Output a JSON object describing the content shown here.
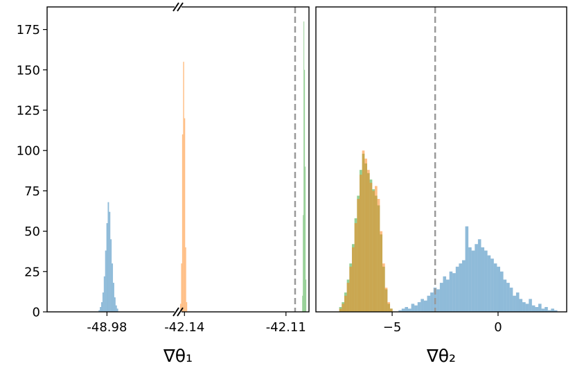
{
  "chart_data": [
    {
      "type": "histogram",
      "xlabel": "∇θ₁",
      "ylim": [
        0,
        189
      ],
      "yticks": [
        0,
        25,
        50,
        75,
        100,
        125,
        150,
        175
      ],
      "segments": [
        {
          "xlim": [
            -49.3,
            -48.6
          ],
          "xticks": [
            -48.98
          ]
        },
        {
          "xlim": [
            -42.1419,
            -42.1032
          ],
          "xticks": [
            -42.14,
            -42.11
          ]
        }
      ],
      "vline": -42.1073,
      "series": [
        {
          "color": "#1f77b4",
          "bins": [
            -49.025,
            -49.018,
            -49.011,
            -49.004,
            -48.997,
            -48.99,
            -48.983,
            -48.976,
            -48.969,
            -48.962,
            -48.955,
            -48.948,
            -48.941,
            -48.934,
            -48.927,
            -48.92
          ],
          "values": [
            1,
            3,
            6,
            12,
            22,
            38,
            55,
            68,
            62,
            45,
            30,
            18,
            9,
            4,
            2
          ]
        },
        {
          "color": "#ff7f0e",
          "bins": [
            -42.1413,
            -42.141,
            -42.1407,
            -42.1404,
            -42.1401,
            -42.1398,
            -42.1395,
            -42.1392
          ],
          "values": [
            5,
            30,
            110,
            155,
            120,
            40,
            6
          ]
        },
        {
          "color": "#2ca02c",
          "bins": [
            -42.1052,
            -42.105,
            -42.1048,
            -42.1046,
            -42.1044,
            -42.1042,
            -42.104
          ],
          "values": [
            10,
            60,
            180,
            150,
            90,
            20
          ]
        }
      ]
    },
    {
      "type": "histogram",
      "xlabel": "∇θ₂",
      "ylim": [
        0,
        189
      ],
      "xlim": [
        -8.6,
        3.24
      ],
      "xticks": [
        {
          "value": -5,
          "label": "−5"
        },
        0
      ],
      "vline": -2.97,
      "series": [
        {
          "color": "#1f77b4",
          "bins": [
            -4.7,
            -4.55,
            -4.4,
            -4.25,
            -4.1,
            -3.95,
            -3.8,
            -3.65,
            -3.5,
            -3.35,
            -3.2,
            -3.05,
            -2.9,
            -2.75,
            -2.6,
            -2.45,
            -2.3,
            -2.15,
            -2,
            -1.85,
            -1.7,
            -1.55,
            -1.4,
            -1.25,
            -1.1,
            -0.95,
            -0.8,
            -0.65,
            -0.5,
            -0.35,
            -0.2,
            -0.05,
            0.1,
            0.25,
            0.4,
            0.55,
            0.7,
            0.85,
            1,
            1.15,
            1.3,
            1.45,
            1.6,
            1.75,
            1.9,
            2.05,
            2.2,
            2.35,
            2.5,
            2.65,
            2.8
          ],
          "values": [
            1,
            2,
            3,
            2,
            5,
            4,
            6,
            8,
            7,
            10,
            12,
            15,
            14,
            18,
            22,
            20,
            25,
            24,
            28,
            30,
            32,
            53,
            40,
            38,
            42,
            45,
            40,
            38,
            35,
            33,
            30,
            28,
            25,
            20,
            18,
            15,
            10,
            12,
            8,
            6,
            5,
            8,
            4,
            3,
            5,
            2,
            3,
            1,
            2,
            1
          ]
        },
        {
          "color": "#2ca02c",
          "bins": [
            -7.5,
            -7.38,
            -7.26,
            -7.14,
            -7.02,
            -6.9,
            -6.78,
            -6.66,
            -6.54,
            -6.42,
            -6.3,
            -6.18,
            -6.06,
            -5.94,
            -5.82,
            -5.7,
            -5.58,
            -5.46,
            -5.34,
            -5.22,
            -5.1,
            -4.98
          ],
          "values": [
            3,
            6,
            12,
            20,
            30,
            42,
            58,
            72,
            88,
            98,
            92,
            86,
            82,
            76,
            72,
            66,
            48,
            28,
            14,
            5,
            2
          ]
        },
        {
          "color": "#ff7f0e",
          "bins": [
            -7.5,
            -7.38,
            -7.26,
            -7.14,
            -7.02,
            -6.9,
            -6.78,
            -6.66,
            -6.54,
            -6.42,
            -6.3,
            -6.18,
            -6.06,
            -5.94,
            -5.82,
            -5.7,
            -5.58,
            -5.46,
            -5.34,
            -5.22,
            -5.1,
            -4.98
          ],
          "values": [
            2,
            5,
            10,
            18,
            28,
            40,
            55,
            70,
            85,
            100,
            95,
            88,
            80,
            75,
            78,
            70,
            50,
            30,
            15,
            6,
            2
          ]
        }
      ]
    }
  ]
}
